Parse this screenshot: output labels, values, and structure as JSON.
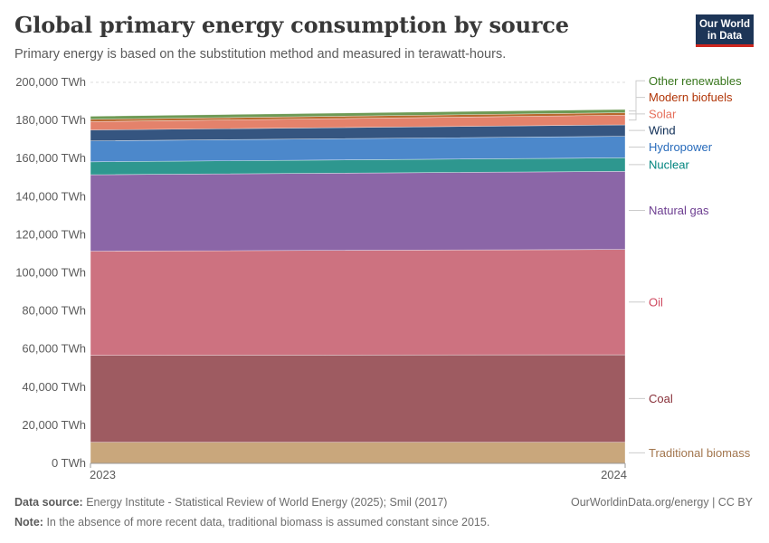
{
  "header": {
    "title": "Global primary energy consumption by source",
    "subtitle": "Primary energy is based on the substitution method and measured in terawatt-hours."
  },
  "logo": {
    "line1": "Our World",
    "line2": "in Data"
  },
  "footer": {
    "source_label": "Data source:",
    "source_text": "Energy Institute - Statistical Review of World Energy (2025); Smil (2017)",
    "note_label": "Note:",
    "note_text": "In the absence of more recent data, traditional biomass is assumed constant since 2015.",
    "credit": "OurWorldinData.org/energy | CC BY"
  },
  "chart_data": {
    "type": "area",
    "stacked": true,
    "x": [
      "2023",
      "2024"
    ],
    "ylim": [
      0,
      200000
    ],
    "yticks": [
      0,
      20000,
      40000,
      60000,
      80000,
      100000,
      120000,
      140000,
      160000,
      180000,
      200000
    ],
    "ytick_labels": [
      "0 TWh",
      "20,000 TWh",
      "40,000 TWh",
      "60,000 TWh",
      "80,000 TWh",
      "100,000 TWh",
      "120,000 TWh",
      "140,000 TWh",
      "160,000 TWh",
      "180,000 TWh",
      "200,000 TWh"
    ],
    "grid": true,
    "legend_placement": "right",
    "series": [
      {
        "name": "Traditional biomass",
        "values": [
          11100,
          11100
        ],
        "color": "#c9a77c",
        "label_color": "#a2754d"
      },
      {
        "name": "Coal",
        "values": [
          45600,
          45900
        ],
        "color": "#9e5b61",
        "label_color": "#883039"
      },
      {
        "name": "Oil",
        "values": [
          54700,
          55300
        ],
        "color": "#cd7280",
        "label_color": "#cf4a60"
      },
      {
        "name": "Natural gas",
        "values": [
          40100,
          41000
        ],
        "color": "#8b66a7",
        "label_color": "#6d3e91"
      },
      {
        "name": "Nuclear",
        "values": [
          6800,
          7100
        ],
        "color": "#2e978f",
        "label_color": "#00847e"
      },
      {
        "name": "Hydropower",
        "values": [
          11000,
          11300
        ],
        "color": "#4c88cb",
        "label_color": "#286bbb"
      },
      {
        "name": "Wind",
        "values": [
          5700,
          6000
        ],
        "color": "#355580",
        "label_color": "#0d2c55"
      },
      {
        "name": "Solar",
        "values": [
          4400,
          5100
        ],
        "color": "#e4826b",
        "label_color": "#e56e5a"
      },
      {
        "name": "Modern biofuels",
        "values": [
          1200,
          1300
        ],
        "color": "#b8682d",
        "label_color": "#b13507"
      },
      {
        "name": "Other renewables",
        "values": [
          1600,
          1700
        ],
        "color": "#6e9a55",
        "label_color": "#38761d"
      }
    ]
  }
}
